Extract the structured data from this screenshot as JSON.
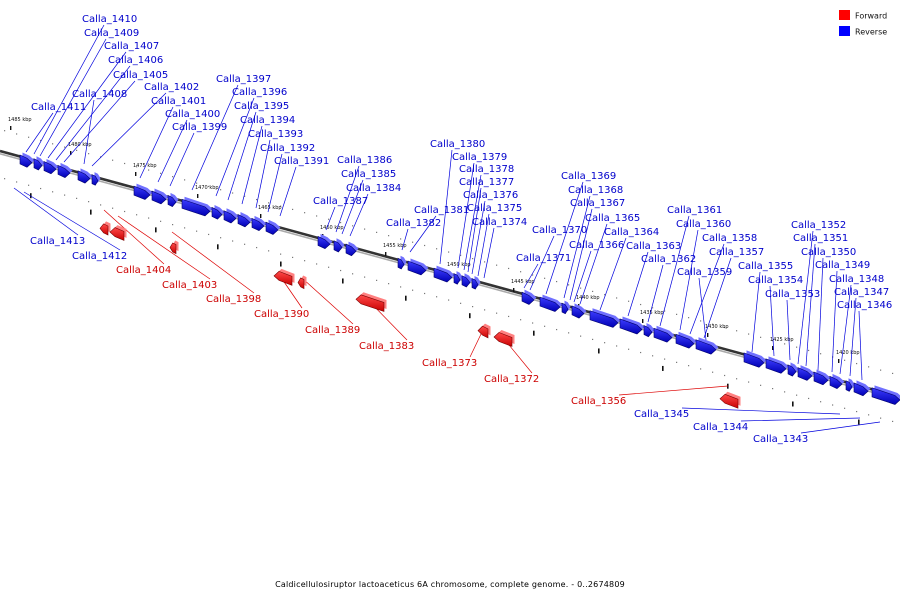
{
  "caption": "Caldicellulosiruptor lactoaceticus 6A chromosome, complete genome. - 0..2674809",
  "legend": {
    "forward_label": "Forward",
    "reverse_label": "Reverse",
    "forward_color": "#ff0000",
    "reverse_color": "#0000ff"
  },
  "colors": {
    "forward_label": "#cc0000",
    "reverse_label": "#0000cc",
    "leader_forward": "#dd0000",
    "leader_reverse": "#0000dd",
    "backbone": "#555555"
  },
  "ticks": [
    "1485 kbp",
    "1480 kbp",
    "1475 kbp",
    "1470 kbp",
    "1465 kbp",
    "1460 kbp",
    "1455 kbp",
    "1450 kbp",
    "1445 kbp",
    "1440 kbp",
    "1435 kbp",
    "1430 kbp",
    "1425 kbp",
    "1420 kbp"
  ],
  "genes": [
    {
      "name": "Calla_1410",
      "strand": "Reverse"
    },
    {
      "name": "Calla_1409",
      "strand": "Reverse"
    },
    {
      "name": "Calla_1407",
      "strand": "Reverse"
    },
    {
      "name": "Calla_1406",
      "strand": "Reverse"
    },
    {
      "name": "Calla_1405",
      "strand": "Reverse"
    },
    {
      "name": "Calla_1408",
      "strand": "Reverse"
    },
    {
      "name": "Calla_1411",
      "strand": "Reverse"
    },
    {
      "name": "Calla_1402",
      "strand": "Reverse"
    },
    {
      "name": "Calla_1401",
      "strand": "Reverse"
    },
    {
      "name": "Calla_1400",
      "strand": "Reverse"
    },
    {
      "name": "Calla_1399",
      "strand": "Reverse"
    },
    {
      "name": "Calla_1397",
      "strand": "Reverse"
    },
    {
      "name": "Calla_1396",
      "strand": "Reverse"
    },
    {
      "name": "Calla_1395",
      "strand": "Reverse"
    },
    {
      "name": "Calla_1394",
      "strand": "Reverse"
    },
    {
      "name": "Calla_1393",
      "strand": "Reverse"
    },
    {
      "name": "Calla_1392",
      "strand": "Reverse"
    },
    {
      "name": "Calla_1391",
      "strand": "Reverse"
    },
    {
      "name": "Calla_1386",
      "strand": "Reverse"
    },
    {
      "name": "Calla_1385",
      "strand": "Reverse"
    },
    {
      "name": "Calla_1384",
      "strand": "Reverse"
    },
    {
      "name": "Calla_1387",
      "strand": "Reverse"
    },
    {
      "name": "Calla_1381",
      "strand": "Reverse"
    },
    {
      "name": "Calla_1382",
      "strand": "Reverse"
    },
    {
      "name": "Calla_1380",
      "strand": "Reverse"
    },
    {
      "name": "Calla_1379",
      "strand": "Reverse"
    },
    {
      "name": "Calla_1378",
      "strand": "Reverse"
    },
    {
      "name": "Calla_1377",
      "strand": "Reverse"
    },
    {
      "name": "Calla_1376",
      "strand": "Reverse"
    },
    {
      "name": "Calla_1375",
      "strand": "Reverse"
    },
    {
      "name": "Calla_1374",
      "strand": "Reverse"
    },
    {
      "name": "Calla_1370",
      "strand": "Reverse"
    },
    {
      "name": "Calla_1371",
      "strand": "Reverse"
    },
    {
      "name": "Calla_1369",
      "strand": "Reverse"
    },
    {
      "name": "Calla_1368",
      "strand": "Reverse"
    },
    {
      "name": "Calla_1367",
      "strand": "Reverse"
    },
    {
      "name": "Calla_1365",
      "strand": "Reverse"
    },
    {
      "name": "Calla_1366",
      "strand": "Reverse"
    },
    {
      "name": "Calla_1364",
      "strand": "Reverse"
    },
    {
      "name": "Calla_1363",
      "strand": "Reverse"
    },
    {
      "name": "Calla_1362",
      "strand": "Reverse"
    },
    {
      "name": "Calla_1361",
      "strand": "Reverse"
    },
    {
      "name": "Calla_1360",
      "strand": "Reverse"
    },
    {
      "name": "Calla_1358",
      "strand": "Reverse"
    },
    {
      "name": "Calla_1357",
      "strand": "Reverse"
    },
    {
      "name": "Calla_1359",
      "strand": "Reverse"
    },
    {
      "name": "Calla_1355",
      "strand": "Reverse"
    },
    {
      "name": "Calla_1354",
      "strand": "Reverse"
    },
    {
      "name": "Calla_1353",
      "strand": "Reverse"
    },
    {
      "name": "Calla_1352",
      "strand": "Reverse"
    },
    {
      "name": "Calla_1351",
      "strand": "Reverse"
    },
    {
      "name": "Calla_1350",
      "strand": "Reverse"
    },
    {
      "name": "Calla_1349",
      "strand": "Reverse"
    },
    {
      "name": "Calla_1348",
      "strand": "Reverse"
    },
    {
      "name": "Calla_1347",
      "strand": "Reverse"
    },
    {
      "name": "Calla_1346",
      "strand": "Reverse"
    },
    {
      "name": "Calla_1413",
      "strand": "Reverse"
    },
    {
      "name": "Calla_1412",
      "strand": "Reverse"
    },
    {
      "name": "Calla_1404",
      "strand": "Forward"
    },
    {
      "name": "Calla_1403",
      "strand": "Forward"
    },
    {
      "name": "Calla_1398",
      "strand": "Forward"
    },
    {
      "name": "Calla_1390",
      "strand": "Forward"
    },
    {
      "name": "Calla_1389",
      "strand": "Forward"
    },
    {
      "name": "Calla_1383",
      "strand": "Forward"
    },
    {
      "name": "Calla_1373",
      "strand": "Forward"
    },
    {
      "name": "Calla_1372",
      "strand": "Forward"
    },
    {
      "name": "Calla_1356",
      "strand": "Forward"
    },
    {
      "name": "Calla_1345",
      "strand": "Reverse"
    },
    {
      "name": "Calla_1344",
      "strand": "Reverse"
    },
    {
      "name": "Calla_1343",
      "strand": "Reverse"
    }
  ]
}
